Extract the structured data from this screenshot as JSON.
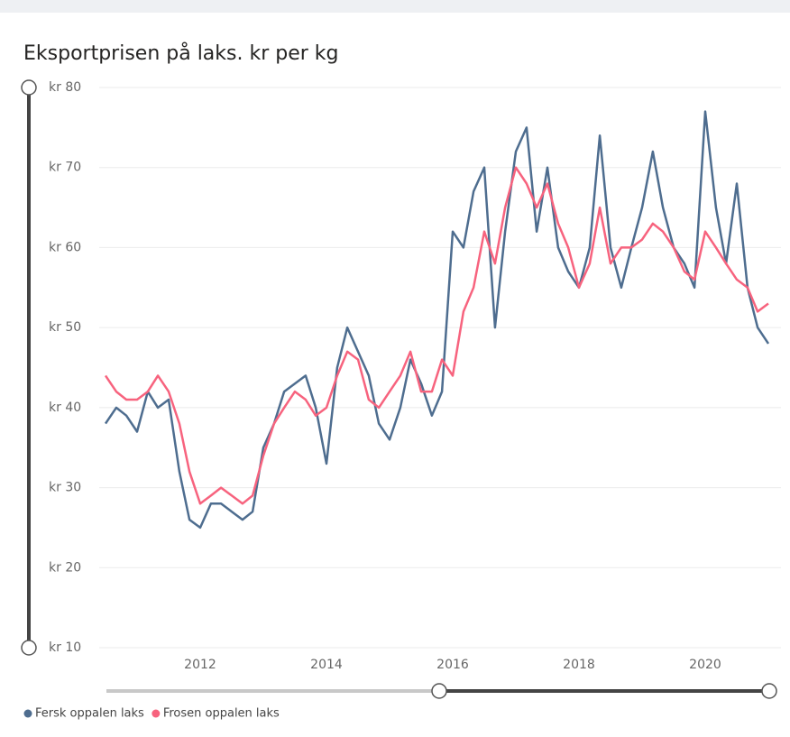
{
  "chart_data": {
    "type": "line",
    "title": "Eksportprisen på laks. kr per kg",
    "x": [
      2010.5,
      2010.67,
      2010.83,
      2011.0,
      2011.17,
      2011.33,
      2011.5,
      2011.67,
      2011.83,
      2012.0,
      2012.17,
      2012.33,
      2012.5,
      2012.67,
      2012.83,
      2013.0,
      2013.17,
      2013.33,
      2013.5,
      2013.67,
      2013.83,
      2014.0,
      2014.17,
      2014.33,
      2014.5,
      2014.67,
      2014.83,
      2015.0,
      2015.17,
      2015.33,
      2015.5,
      2015.67,
      2015.83,
      2016.0,
      2016.17,
      2016.33,
      2016.5,
      2016.67,
      2016.83,
      2017.0,
      2017.17,
      2017.33,
      2017.5,
      2017.67,
      2017.83,
      2018.0,
      2018.17,
      2018.33,
      2018.5,
      2018.67,
      2018.83,
      2019.0,
      2019.17,
      2019.33,
      2019.5,
      2019.67,
      2019.83,
      2020.0,
      2020.17,
      2020.33,
      2020.5,
      2020.67,
      2020.83,
      2021.0
    ],
    "series": [
      {
        "name": "Fersk oppalen laks",
        "color": "#4e6d8f",
        "values": [
          38,
          40,
          39,
          37,
          42,
          40,
          41,
          32,
          26,
          25,
          28,
          28,
          27,
          26,
          27,
          35,
          38,
          42,
          43,
          44,
          40,
          33,
          45,
          50,
          47,
          44,
          38,
          36,
          40,
          46,
          43,
          39,
          42,
          62,
          60,
          67,
          70,
          50,
          62,
          72,
          75,
          62,
          70,
          60,
          57,
          55,
          60,
          74,
          60,
          55,
          60,
          65,
          72,
          65,
          60,
          58,
          55,
          77,
          65,
          58,
          68,
          55,
          50,
          48
        ]
      },
      {
        "name": "Frosen oppalen laks",
        "color": "#f7637e",
        "values": [
          44,
          42,
          41,
          41,
          42,
          44,
          42,
          38,
          32,
          28,
          29,
          30,
          29,
          28,
          29,
          34,
          38,
          40,
          42,
          41,
          39,
          40,
          44,
          47,
          46,
          41,
          40,
          42,
          44,
          47,
          42,
          42,
          46,
          44,
          52,
          55,
          62,
          58,
          65,
          70,
          68,
          65,
          68,
          63,
          60,
          55,
          58,
          65,
          58,
          60,
          60,
          61,
          63,
          62,
          60,
          57,
          56,
          62,
          60,
          58,
          56,
          55,
          52,
          53
        ]
      }
    ],
    "xlim": [
      2010.4,
      2021.2
    ],
    "xticks": [
      2012,
      2014,
      2016,
      2018,
      2020
    ],
    "ylim": [
      10,
      80
    ],
    "yticks": [
      {
        "value": 10,
        "label": "kr 10"
      },
      {
        "value": 20,
        "label": "kr 20"
      },
      {
        "value": 30,
        "label": "kr 30"
      },
      {
        "value": 40,
        "label": "kr 40"
      },
      {
        "value": 50,
        "label": "kr 50"
      },
      {
        "value": 60,
        "label": "kr 60"
      },
      {
        "value": 70,
        "label": "kr 70"
      },
      {
        "value": 80,
        "label": "kr 80"
      }
    ],
    "grid": true
  }
}
